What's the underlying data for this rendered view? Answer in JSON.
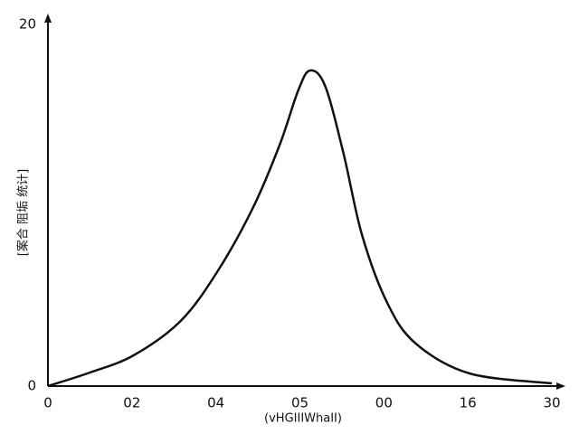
{
  "chart_data": {
    "type": "line",
    "x_label": "(vHGIIIWhaII)",
    "y_label": "[案合 阻垢 统计]",
    "x": [
      0,
      2.5,
      5.1,
      7.9,
      10.1,
      12.2,
      13.8,
      14.9,
      15.6,
      16.5,
      17.6,
      18.7,
      20.2,
      21.9,
      25.1,
      30
    ],
    "series": [
      {
        "color": "#111111",
        "values": [
          0,
          0.75,
          1.7,
          3.6,
          6.35,
          9.85,
          13.35,
          16.35,
          17.45,
          16.6,
          12.85,
          8.35,
          4.6,
          2.35,
          0.7,
          0.15
        ]
      }
    ],
    "xlim": [
      0,
      30
    ],
    "xticks": [
      0,
      {
        "value": 5,
        "label": "02"
      },
      {
        "value": 10,
        "label": "04"
      },
      {
        "value": 15,
        "label": "05"
      },
      {
        "value": 20,
        "label": "00"
      },
      {
        "value": 25,
        "label": "16"
      },
      30
    ],
    "ylim": [
      0,
      20
    ],
    "yticks": [
      0,
      20
    ]
  }
}
